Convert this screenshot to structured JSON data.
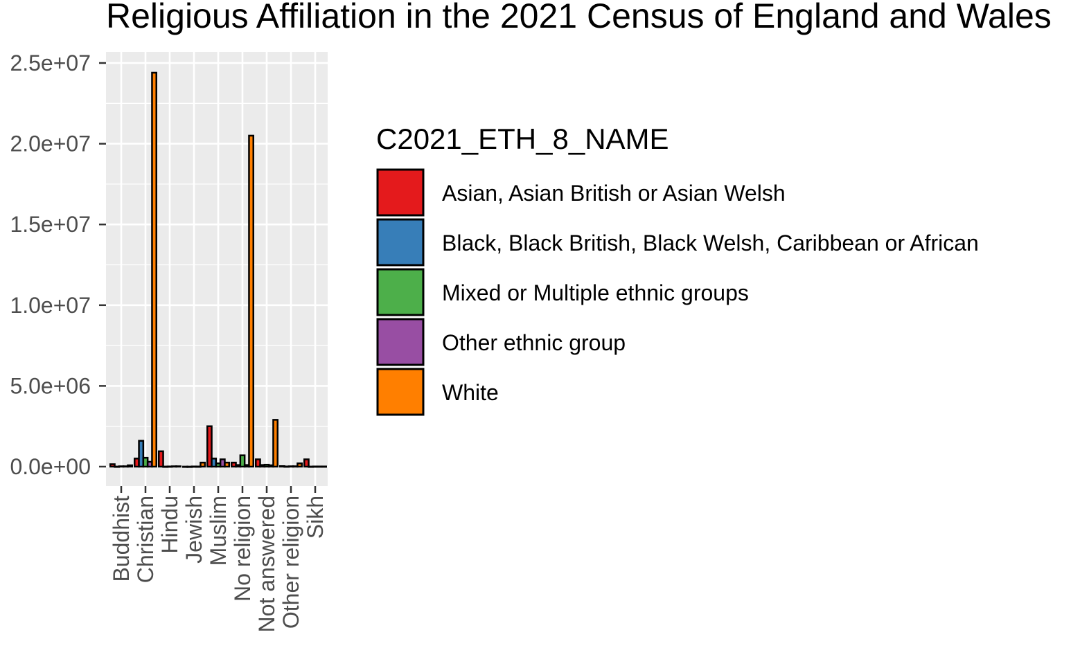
{
  "chart_data": {
    "type": "bar",
    "title": "Religious Affiliation in the 2021 Census of England and Wales",
    "xlabel": "",
    "ylabel": "",
    "ylim": [
      0,
      25500000
    ],
    "y_ticks": [
      {
        "value": 0,
        "label": "0.0e+00"
      },
      {
        "value": 5000000,
        "label": "5.0e+06"
      },
      {
        "value": 10000000,
        "label": "1.0e+07"
      },
      {
        "value": 15000000,
        "label": "1.5e+07"
      },
      {
        "value": 20000000,
        "label": "2.0e+07"
      },
      {
        "value": 25000000,
        "label": "2.5e+07"
      }
    ],
    "grid": true,
    "legend_position": "right",
    "legend_title": "C2021_ETH_8_NAME",
    "categories": [
      "Buddhist",
      "Christian",
      "Hindu",
      "Jewish",
      "Muslim",
      "No religion",
      "Not answered",
      "Other religion",
      "Sikh"
    ],
    "series": [
      {
        "name": "Asian, Asian British or Asian Welsh",
        "color": "#E41A1C",
        "values": [
          150000,
          500000,
          950000,
          3000,
          2500000,
          250000,
          450000,
          30000,
          450000
        ]
      },
      {
        "name": "Black, Black British, Black Welsh, Caribbean or African",
        "color": "#377EB8",
        "values": [
          5000,
          1600000,
          5000,
          2000,
          500000,
          100000,
          100000,
          10000,
          5000
        ]
      },
      {
        "name": "Mixed or Multiple ethnic groups",
        "color": "#4DAF4A",
        "values": [
          20000,
          550000,
          10000,
          10000,
          200000,
          700000,
          120000,
          20000,
          10000
        ]
      },
      {
        "name": "Other ethnic group",
        "color": "#984EA3",
        "values": [
          20000,
          300000,
          20000,
          8000,
          450000,
          100000,
          80000,
          20000,
          10000
        ]
      },
      {
        "name": "White",
        "color": "#FF7F00",
        "values": [
          80000,
          24400000,
          20000,
          250000,
          250000,
          20500000,
          2900000,
          200000,
          10000
        ]
      }
    ]
  }
}
